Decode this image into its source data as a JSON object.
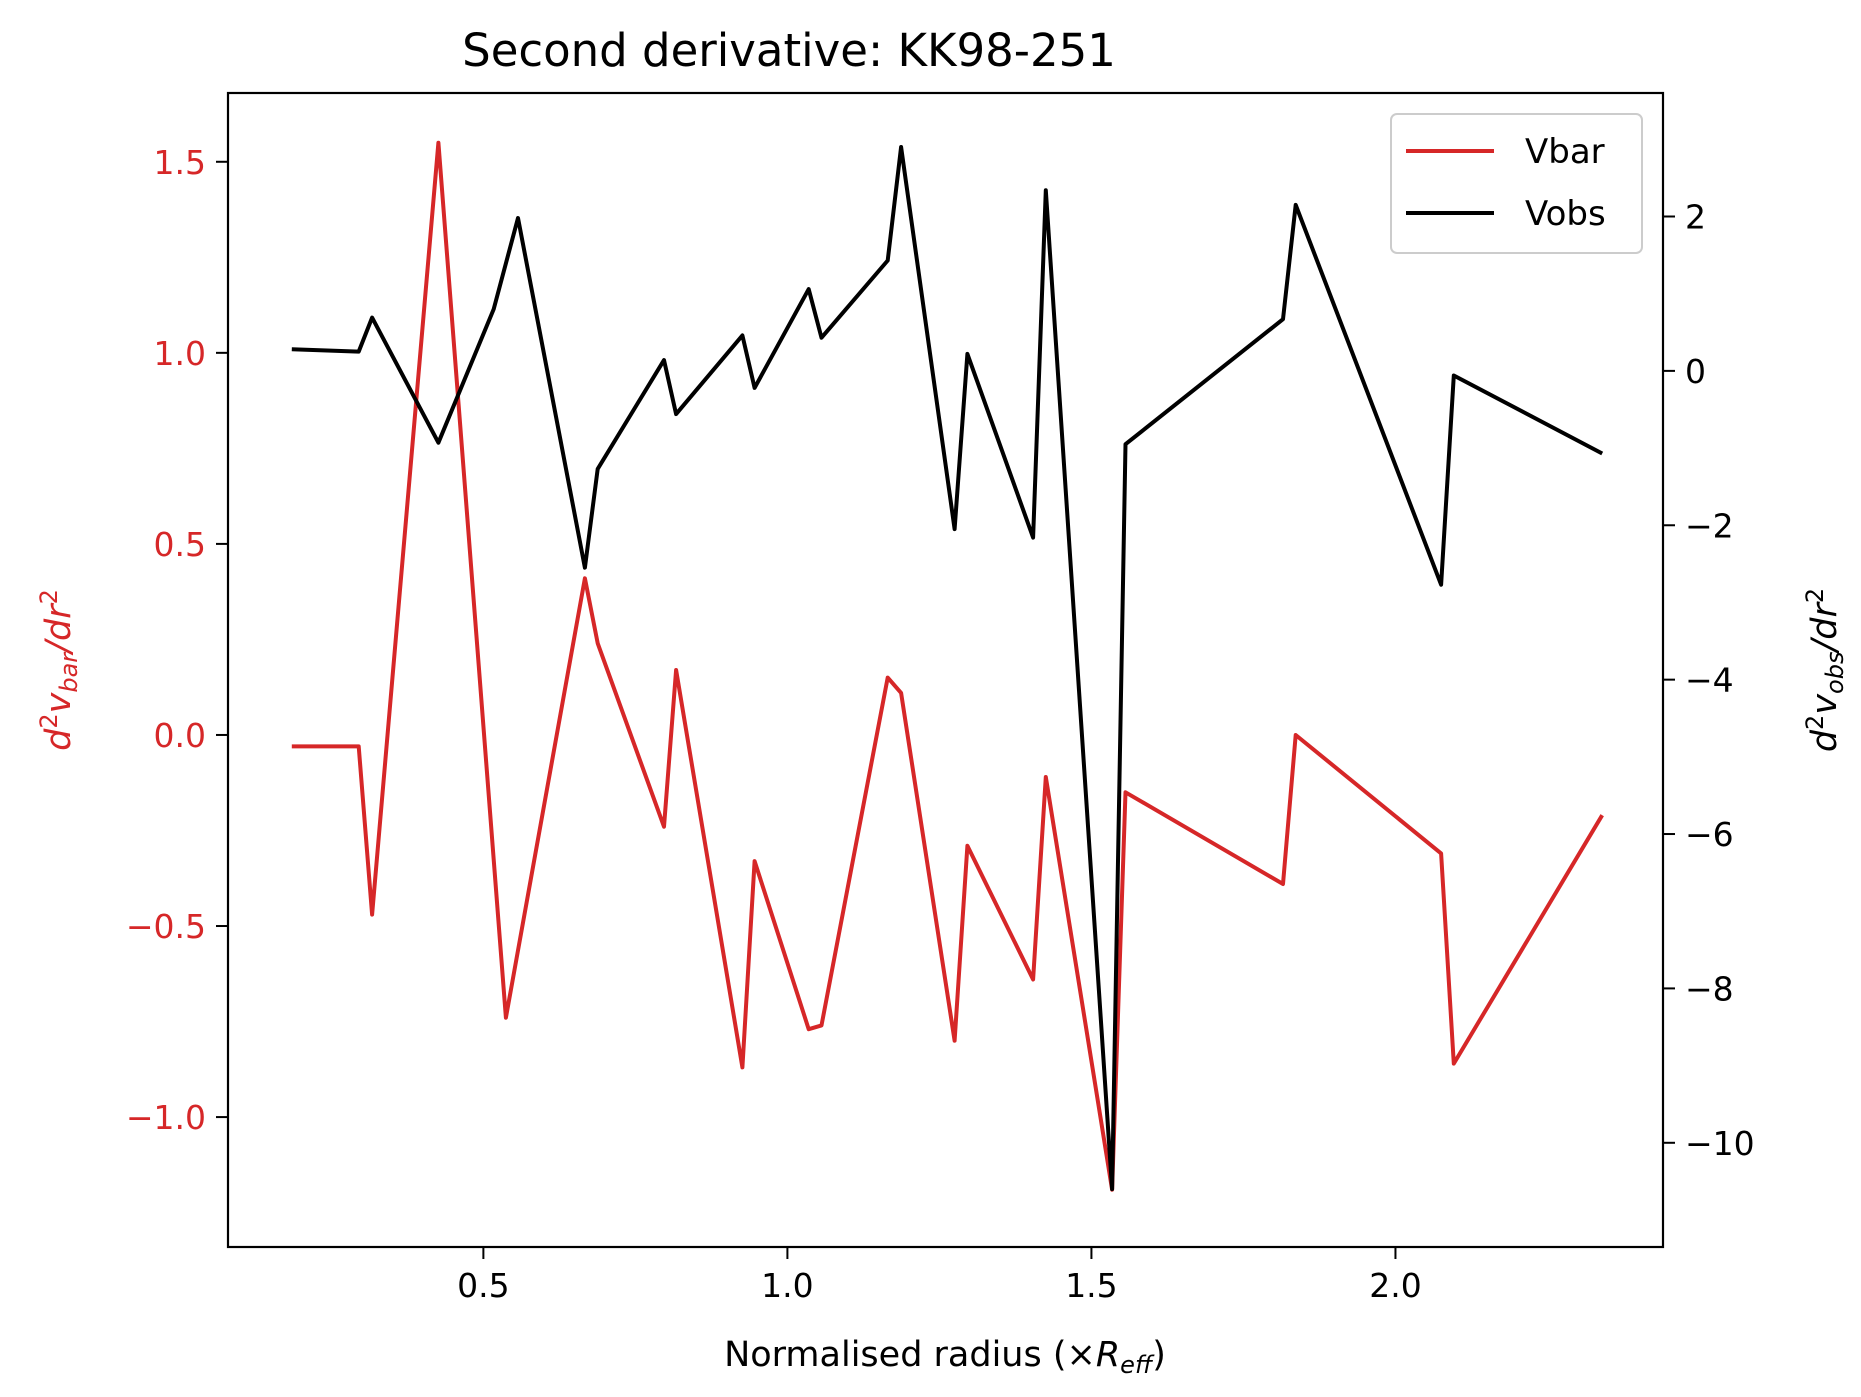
{
  "chart_data": {
    "type": "line",
    "title": "Second derivative: KK98-251",
    "xlabel": "Normalised radius (×R_eff)",
    "xlabel_parts": {
      "pre": "Normalised radius (×",
      "var": "R",
      "sub": "eff",
      "post": ")"
    },
    "ylabel_left": "d²v_bar/dr²",
    "ylabel_left_parts": {
      "d": "d",
      "sup": "2",
      "v": "v",
      "sub": "bar",
      "rest": "/dr",
      "sup2": "2"
    },
    "ylabel_right": "d²v_obs/dr²",
    "ylabel_right_parts": {
      "d": "d",
      "sup": "2",
      "v": "v",
      "sub": "obs",
      "rest": "/dr",
      "sup2": "2"
    },
    "xlim": [
      0.08,
      2.44
    ],
    "ylim_left": [
      -1.34,
      1.68
    ],
    "ylim_right": [
      -11.35,
      3.6
    ],
    "x_ticks": [
      0.5,
      1.0,
      1.5,
      2.0
    ],
    "x_tick_labels": [
      "0.5",
      "1.0",
      "1.5",
      "2.0"
    ],
    "y_left_ticks": [
      1.5,
      1.0,
      0.5,
      0.0,
      -0.5,
      -1.0
    ],
    "y_left_tick_labels": [
      "1.5",
      "1.0",
      "0.5",
      "0.0",
      "−0.5",
      "−1.0"
    ],
    "y_right_ticks": [
      2,
      0,
      -2,
      -4,
      -6,
      -8,
      -10
    ],
    "y_right_tick_labels": [
      "2",
      "0",
      "−2",
      "−4",
      "−6",
      "−8",
      "−10"
    ],
    "legend_position": "top-right",
    "grid": false,
    "colors": {
      "vbar": "#d62728",
      "vobs": "#000000",
      "left_axis": "#d62728"
    },
    "series": [
      {
        "name": "Vbar",
        "axis": "left",
        "x": [
          0.185,
          0.295,
          0.317,
          0.426,
          0.537,
          0.667,
          0.688,
          0.797,
          0.817,
          0.926,
          0.946,
          1.035,
          1.056,
          1.165,
          1.187,
          1.275,
          1.296,
          1.404,
          1.425,
          1.534,
          1.556,
          1.815,
          1.836,
          2.075,
          2.096,
          2.34
        ],
        "values": [
          -0.03,
          -0.03,
          -0.47,
          1.55,
          -0.74,
          0.41,
          0.24,
          -0.24,
          0.17,
          -0.87,
          -0.33,
          -0.77,
          -0.76,
          0.15,
          0.11,
          -0.8,
          -0.29,
          -0.64,
          -0.11,
          -1.19,
          -0.15,
          -0.39,
          0.0,
          -0.31,
          -0.86,
          -0.21
        ]
      },
      {
        "name": "Vobs",
        "axis": "right",
        "x": [
          0.185,
          0.295,
          0.317,
          0.426,
          0.517,
          0.557,
          0.667,
          0.688,
          0.797,
          0.817,
          0.926,
          0.946,
          1.035,
          1.056,
          1.165,
          1.187,
          1.275,
          1.296,
          1.404,
          1.425,
          1.534,
          1.556,
          1.815,
          1.836,
          2.075,
          2.096,
          2.34
        ],
        "values": [
          0.28,
          0.25,
          0.69,
          -0.93,
          0.8,
          1.98,
          -2.55,
          -1.27,
          0.14,
          -0.56,
          0.46,
          -0.22,
          1.06,
          0.43,
          1.43,
          2.9,
          -2.05,
          0.22,
          -2.16,
          2.34,
          -10.6,
          -0.95,
          0.67,
          2.15,
          -2.77,
          -0.06,
          -1.07
        ]
      }
    ]
  }
}
